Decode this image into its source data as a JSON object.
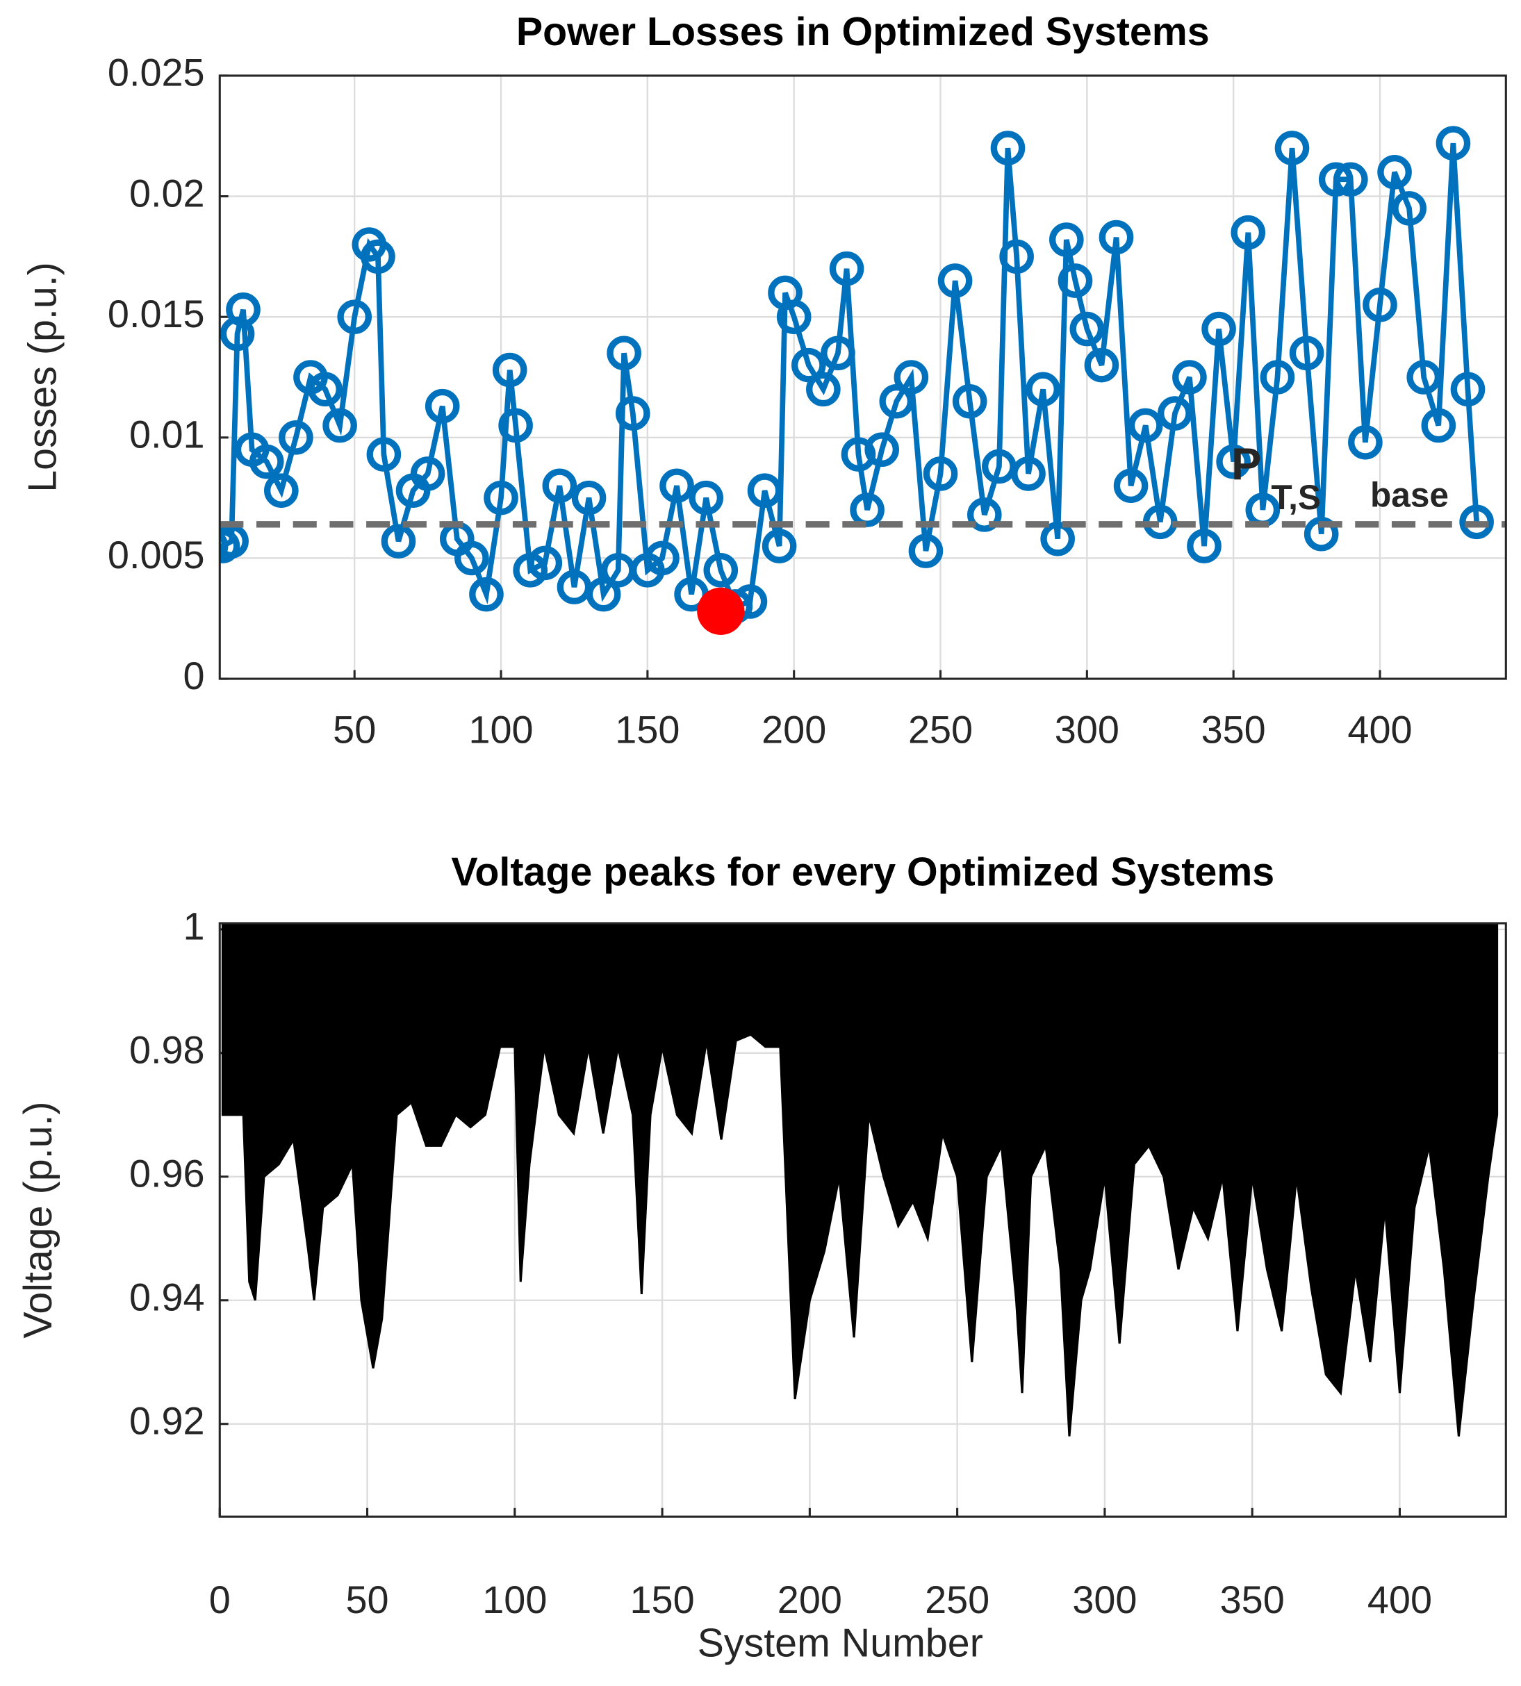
{
  "chart_data": [
    {
      "type": "line",
      "title": "Power Losses in Optimized Systems",
      "ylabel": "Losses (p.u.)",
      "xlim": [
        4,
        443
      ],
      "xticks": [
        50,
        100,
        150,
        200,
        250,
        300,
        350,
        400
      ],
      "ylim": [
        0,
        0.025
      ],
      "yticks": [
        0,
        0.005,
        0.01,
        0.015,
        0.02,
        0.025
      ],
      "grid": true,
      "x": [
        1,
        5,
        8,
        10,
        12,
        15,
        20,
        25,
        30,
        35,
        40,
        45,
        50,
        55,
        58,
        60,
        65,
        70,
        75,
        80,
        85,
        90,
        95,
        100,
        103,
        105,
        110,
        115,
        120,
        125,
        130,
        135,
        140,
        142,
        145,
        150,
        155,
        160,
        165,
        170,
        175,
        180,
        185,
        190,
        195,
        197,
        200,
        205,
        210,
        215,
        218,
        222,
        225,
        230,
        235,
        240,
        245,
        250,
        255,
        260,
        265,
        270,
        273,
        276,
        280,
        285,
        290,
        293,
        296,
        300,
        305,
        310,
        315,
        320,
        325,
        330,
        335,
        340,
        345,
        350,
        355,
        360,
        365,
        370,
        375,
        380,
        385,
        390,
        395,
        400,
        405,
        410,
        415,
        420,
        425,
        430,
        433
      ],
      "values": [
        0.0055,
        0.0055,
        0.0057,
        0.0143,
        0.0153,
        0.0095,
        0.009,
        0.0078,
        0.01,
        0.0125,
        0.012,
        0.0105,
        0.015,
        0.018,
        0.0175,
        0.0093,
        0.0057,
        0.0078,
        0.0085,
        0.0113,
        0.0058,
        0.005,
        0.0035,
        0.0075,
        0.0128,
        0.0105,
        0.0045,
        0.0048,
        0.008,
        0.0038,
        0.0075,
        0.0035,
        0.0045,
        0.0135,
        0.011,
        0.0045,
        0.005,
        0.008,
        0.0035,
        0.0075,
        0.0045,
        0.003,
        0.0032,
        0.0078,
        0.0055,
        0.016,
        0.015,
        0.013,
        0.012,
        0.0135,
        0.017,
        0.0093,
        0.007,
        0.0095,
        0.0115,
        0.0125,
        0.0053,
        0.0085,
        0.0165,
        0.0115,
        0.0068,
        0.0088,
        0.022,
        0.0175,
        0.0085,
        0.012,
        0.0058,
        0.0182,
        0.0165,
        0.0145,
        0.013,
        0.0183,
        0.008,
        0.0105,
        0.0065,
        0.011,
        0.0125,
        0.0055,
        0.0145,
        0.009,
        0.0185,
        0.007,
        0.0125,
        0.022,
        0.0135,
        0.006,
        0.0207,
        0.0207,
        0.0098,
        0.0155,
        0.021,
        0.0195,
        0.0125,
        0.0105,
        0.0222,
        0.012,
        0.0065
      ],
      "color": "#0072bd",
      "highlight": {
        "x": 175,
        "value": 0.0028,
        "color": "#ff0000"
      },
      "reference_line": {
        "value": 0.0064,
        "color": "#6e6e6e"
      },
      "annotation": {
        "text": "P",
        "subscript": "T,S",
        "suffix": "base"
      }
    },
    {
      "type": "area",
      "title": "Voltage peaks for every Optimized Systems",
      "xlabel": "System Number",
      "ylabel": "Voltage (p.u.)",
      "xlim": [
        0,
        436
      ],
      "xticks": [
        0,
        50,
        100,
        150,
        200,
        250,
        300,
        350,
        400
      ],
      "ylim": [
        0.905,
        1.001
      ],
      "yticks": [
        0.92,
        0.94,
        0.96,
        0.98,
        1
      ],
      "grid": true,
      "x": [
        1,
        8,
        10,
        12,
        15,
        20,
        25,
        30,
        32,
        35,
        40,
        45,
        48,
        52,
        55,
        60,
        65,
        70,
        75,
        80,
        85,
        90,
        95,
        100,
        102,
        105,
        110,
        115,
        120,
        125,
        130,
        135,
        140,
        143,
        146,
        150,
        155,
        160,
        165,
        170,
        175,
        180,
        185,
        190,
        195,
        200,
        205,
        210,
        215,
        220,
        225,
        230,
        235,
        240,
        245,
        250,
        255,
        260,
        265,
        270,
        272,
        275,
        280,
        285,
        288,
        292,
        295,
        300,
        305,
        310,
        315,
        320,
        325,
        330,
        335,
        340,
        345,
        350,
        355,
        360,
        365,
        370,
        375,
        380,
        385,
        390,
        395,
        400,
        405,
        410,
        415,
        420,
        425,
        430,
        433
      ],
      "values": [
        0.97,
        0.97,
        0.943,
        0.94,
        0.96,
        0.962,
        0.966,
        0.948,
        0.94,
        0.955,
        0.957,
        0.962,
        0.94,
        0.929,
        0.937,
        0.97,
        0.972,
        0.965,
        0.965,
        0.97,
        0.968,
        0.97,
        0.981,
        0.981,
        0.943,
        0.962,
        0.981,
        0.97,
        0.967,
        0.981,
        0.967,
        0.981,
        0.97,
        0.941,
        0.97,
        0.981,
        0.97,
        0.967,
        0.982,
        0.966,
        0.982,
        0.983,
        0.981,
        0.981,
        0.924,
        0.94,
        0.948,
        0.96,
        0.934,
        0.97,
        0.96,
        0.952,
        0.956,
        0.95,
        0.967,
        0.96,
        0.93,
        0.96,
        0.965,
        0.94,
        0.925,
        0.96,
        0.965,
        0.945,
        0.918,
        0.94,
        0.945,
        0.96,
        0.933,
        0.962,
        0.965,
        0.96,
        0.945,
        0.955,
        0.95,
        0.96,
        0.935,
        0.96,
        0.945,
        0.935,
        0.96,
        0.942,
        0.928,
        0.925,
        0.945,
        0.93,
        0.955,
        0.925,
        0.955,
        0.965,
        0.945,
        0.918,
        0.94,
        0.96,
        0.97
      ],
      "color": "#000000"
    }
  ]
}
